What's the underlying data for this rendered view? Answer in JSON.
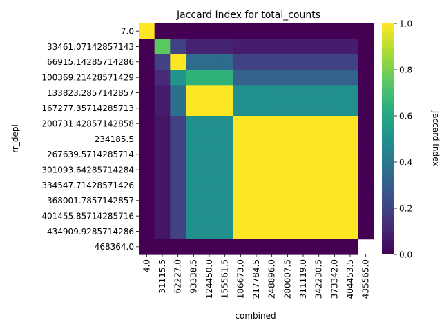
{
  "chart_data": {
    "type": "heatmap",
    "title": "Jaccard Index for total_counts",
    "xlabel": "combined",
    "ylabel": "rr_depl",
    "colorbar_label": "Jaccard Index",
    "colormap": "viridis",
    "vmin": 0.0,
    "vmax": 1.0,
    "colorbar_ticks": [
      "0.0",
      "0.2",
      "0.4",
      "0.6",
      "0.8",
      "1.0"
    ],
    "x_labels": [
      "4.0",
      "31115.5",
      "62227.0",
      "93338.5",
      "124450.0",
      "155561.5",
      "186673.0",
      "217784.5",
      "248896.0",
      "280007.5",
      "311119.0",
      "342230.5",
      "373342.0",
      "404453.5",
      "435565.0"
    ],
    "y_labels": [
      "7.0",
      "33461.07142857143",
      "66915.14285714286",
      "100369.21428571429",
      "133823.2857142857",
      "167277.35714285713",
      "200731.42857142858",
      "234185.5",
      "267639.5714285714",
      "301093.64285714284",
      "334547.71428571426",
      "368001.7857142857",
      "401455.85714285716",
      "434909.9285714286",
      "468364.0"
    ],
    "values": [
      [
        1.0,
        0.0,
        0.0,
        0.0,
        0.0,
        0.0,
        0.0,
        0.0,
        0.0,
        0.0,
        0.0,
        0.0,
        0.0,
        0.0,
        0.0
      ],
      [
        0.0,
        0.75,
        0.2,
        0.1,
        0.1,
        0.1,
        0.08,
        0.08,
        0.08,
        0.08,
        0.08,
        0.08,
        0.08,
        0.08,
        0.0
      ],
      [
        0.0,
        0.2,
        1.0,
        0.35,
        0.35,
        0.35,
        0.2,
        0.2,
        0.2,
        0.2,
        0.2,
        0.2,
        0.2,
        0.2,
        0.0
      ],
      [
        0.0,
        0.12,
        0.52,
        0.65,
        0.65,
        0.65,
        0.32,
        0.32,
        0.32,
        0.32,
        0.32,
        0.32,
        0.32,
        0.32,
        0.0
      ],
      [
        0.0,
        0.08,
        0.37,
        1.0,
        1.0,
        1.0,
        0.5,
        0.5,
        0.5,
        0.5,
        0.5,
        0.5,
        0.5,
        0.5,
        0.0
      ],
      [
        0.0,
        0.08,
        0.37,
        1.0,
        1.0,
        1.0,
        0.5,
        0.5,
        0.5,
        0.5,
        0.5,
        0.5,
        0.5,
        0.5,
        0.0
      ],
      [
        0.0,
        0.06,
        0.2,
        0.5,
        0.5,
        0.5,
        1.0,
        1.0,
        1.0,
        1.0,
        1.0,
        1.0,
        1.0,
        1.0,
        0.0
      ],
      [
        0.0,
        0.06,
        0.2,
        0.5,
        0.5,
        0.5,
        1.0,
        1.0,
        1.0,
        1.0,
        1.0,
        1.0,
        1.0,
        1.0,
        0.0
      ],
      [
        0.0,
        0.06,
        0.2,
        0.5,
        0.5,
        0.5,
        1.0,
        1.0,
        1.0,
        1.0,
        1.0,
        1.0,
        1.0,
        1.0,
        0.0
      ],
      [
        0.0,
        0.06,
        0.2,
        0.5,
        0.5,
        0.5,
        1.0,
        1.0,
        1.0,
        1.0,
        1.0,
        1.0,
        1.0,
        1.0,
        0.0
      ],
      [
        0.0,
        0.06,
        0.2,
        0.5,
        0.5,
        0.5,
        1.0,
        1.0,
        1.0,
        1.0,
        1.0,
        1.0,
        1.0,
        1.0,
        0.0
      ],
      [
        0.0,
        0.06,
        0.2,
        0.5,
        0.5,
        0.5,
        1.0,
        1.0,
        1.0,
        1.0,
        1.0,
        1.0,
        1.0,
        1.0,
        0.0
      ],
      [
        0.0,
        0.06,
        0.2,
        0.5,
        0.5,
        0.5,
        1.0,
        1.0,
        1.0,
        1.0,
        1.0,
        1.0,
        1.0,
        1.0,
        0.0
      ],
      [
        0.0,
        0.06,
        0.2,
        0.5,
        0.5,
        0.5,
        1.0,
        1.0,
        1.0,
        1.0,
        1.0,
        1.0,
        1.0,
        1.0,
        0.0
      ],
      [
        0.0,
        0.0,
        0.0,
        0.0,
        0.0,
        0.0,
        0.0,
        0.0,
        0.0,
        0.0,
        0.0,
        0.0,
        0.0,
        0.0,
        null
      ]
    ]
  }
}
